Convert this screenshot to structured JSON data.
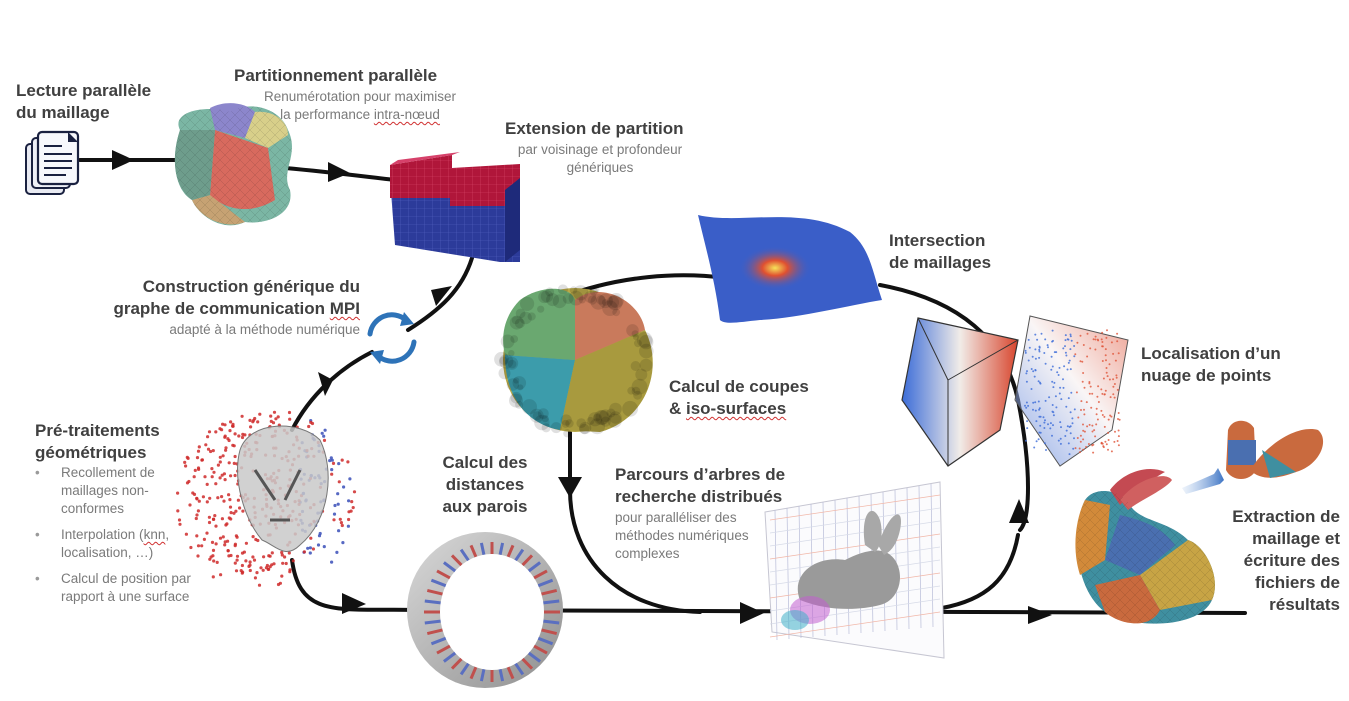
{
  "steps": {
    "lecture": {
      "title_l1": "Lecture parallèle",
      "title_l2": "du maillage"
    },
    "partition": {
      "title": "Partitionnement parallèle",
      "sub_l1": "Renumérotation pour maximiser",
      "sub_l2_a": "la performance ",
      "sub_l2_b": "intra-nœud"
    },
    "extension": {
      "title": "Extension de partition",
      "sub_l1": "par voisinage et profondeur",
      "sub_l2": "génériques"
    },
    "graphe": {
      "title_l1": "Construction générique du",
      "title_l2_a": "graphe de communication ",
      "title_l2_b": "MPI",
      "sub": "adapté à la méthode numérique"
    },
    "pretraitements": {
      "title_l1": "Pré-traitements",
      "title_l2": "géométriques",
      "b1_l1": "Recollement de",
      "b1_l2": "maillages non-",
      "b1_l3": "conformes",
      "b2_l1_a": "Interpolation (",
      "b2_l1_b": "knn",
      "b2_l1_c": ",",
      "b2_l2": "localisation, …)",
      "b3_l1": "Calcul de position par",
      "b3_l2": "rapport à une surface"
    },
    "distances": {
      "l1": "Calcul des",
      "l2": "distances",
      "l3": "aux parois"
    },
    "coupes": {
      "l1": "Calcul de coupes",
      "l2_a": "& ",
      "l2_b": "iso-surfaces"
    },
    "intersection": {
      "l1": "Intersection",
      "l2": "de maillages"
    },
    "localisation": {
      "l1": "Localisation d’un",
      "l2": "nuage de points"
    },
    "parcours": {
      "title_l1": "Parcours d’arbres de",
      "title_l2": "recherche distribués",
      "sub_l1": "pour paralléliser des",
      "sub_l2": "méthodes numériques",
      "sub_l3": "complexes"
    },
    "extraction": {
      "l1": "Extraction de",
      "l2": "maillage et",
      "l3": "écriture des",
      "l4": "fichiers de",
      "l5": "résultats"
    }
  },
  "icons": [
    "document-stack-icon",
    "sync-cycle-icon"
  ],
  "colors": {
    "arrow": "#111111",
    "heading": "#404040",
    "subtext": "#7a7a7a",
    "sync": "#2e73b8"
  }
}
